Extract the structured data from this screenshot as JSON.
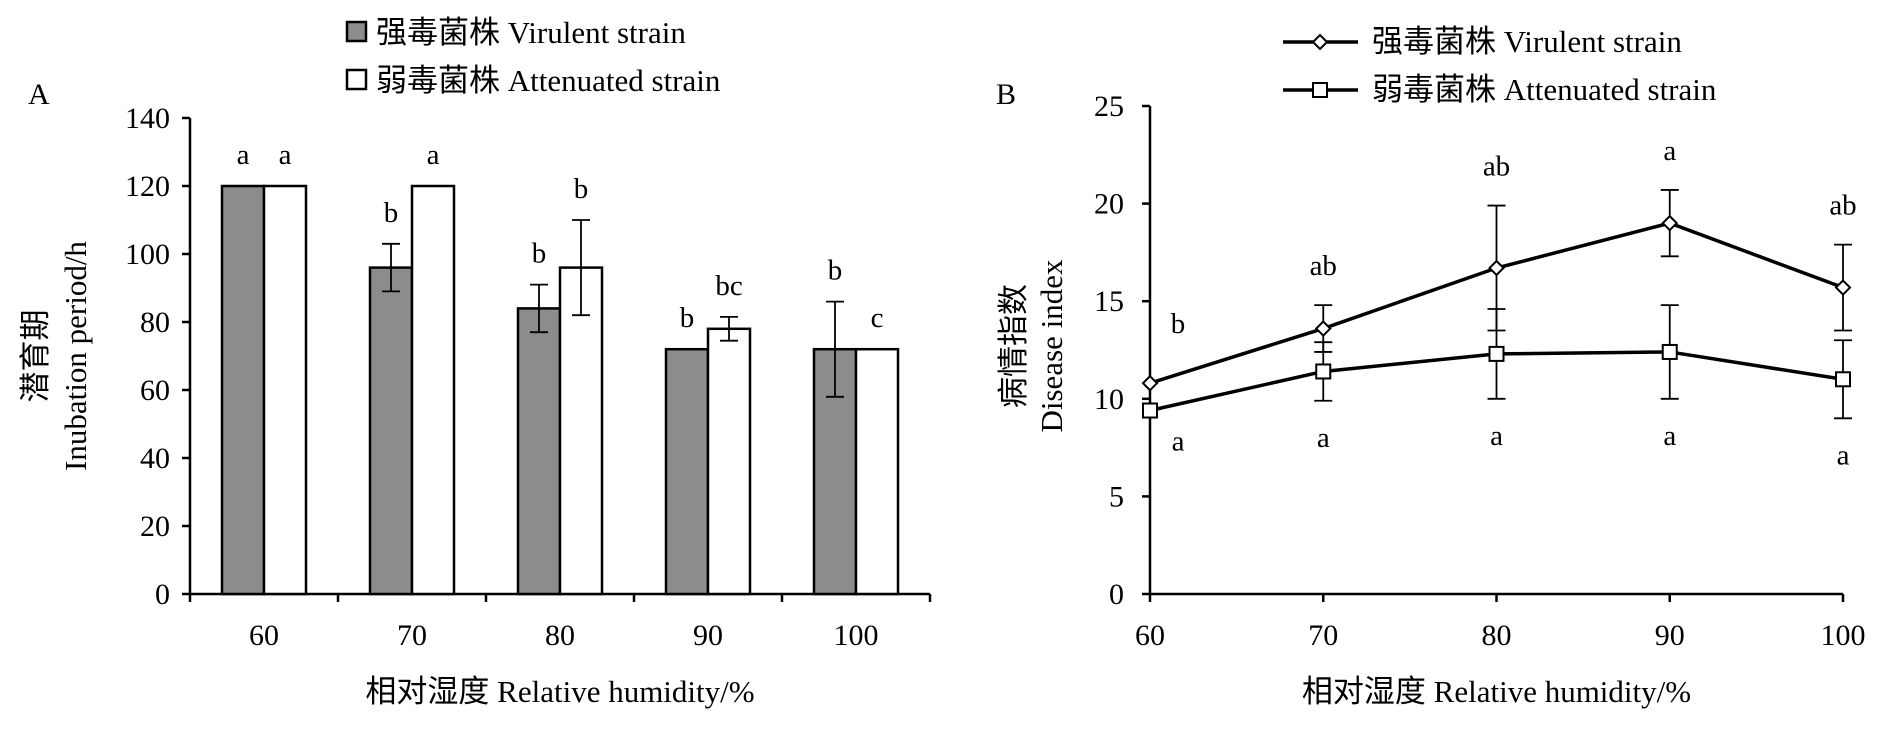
{
  "chart_data": [
    {
      "panel": "A",
      "type": "bar",
      "categories": [
        "60",
        "70",
        "80",
        "90",
        "100"
      ],
      "xlabel": "相对湿度 Relative humidity/%",
      "ylabel_cn": "潜育期",
      "ylabel_en": "Inubation period/h",
      "ylim": [
        0,
        140
      ],
      "yticks": [
        "0",
        "20",
        "40",
        "60",
        "80",
        "100",
        "120",
        "140"
      ],
      "grid": false,
      "legend_position": "top",
      "series": [
        {
          "name": "强毒菌株 Virulent strain",
          "color": "#8c8c8c",
          "values": [
            120,
            96,
            84,
            72,
            72
          ],
          "errors": [
            0,
            7,
            7,
            0,
            14
          ],
          "letters": [
            "a",
            "b",
            "b",
            "b",
            "b"
          ]
        },
        {
          "name": "弱毒菌株 Attenuated strain",
          "color": "#ffffff",
          "values": [
            120,
            120,
            96,
            78,
            72
          ],
          "errors": [
            0,
            0,
            14,
            3.5,
            0
          ],
          "letters": [
            "a",
            "a",
            "b",
            "bc",
            "c"
          ]
        }
      ]
    },
    {
      "panel": "B",
      "type": "line",
      "x": [
        60,
        70,
        80,
        90,
        100
      ],
      "xticks": [
        "60",
        "70",
        "80",
        "90",
        "100"
      ],
      "xlabel": "相对湿度 Relative humidity/%",
      "ylabel_cn": "病情指数",
      "ylabel_en": "Disease index",
      "xlim": [
        60,
        100
      ],
      "ylim": [
        0,
        25
      ],
      "yticks": [
        "0",
        "5",
        "10",
        "15",
        "20",
        "25"
      ],
      "grid": false,
      "legend_position": "top",
      "series": [
        {
          "name": "强毒菌株 Virulent strain",
          "marker": "diamond",
          "values": [
            10.8,
            13.6,
            16.7,
            19.0,
            15.7
          ],
          "errors": [
            0,
            1.2,
            3.2,
            1.7,
            2.2
          ],
          "letters": [
            "b",
            "ab",
            "ab",
            "a",
            "ab"
          ]
        },
        {
          "name": "弱毒菌株 Attenuated strain",
          "marker": "square",
          "values": [
            9.4,
            11.4,
            12.3,
            12.4,
            11.0
          ],
          "errors": [
            0,
            1.5,
            2.3,
            2.4,
            2.0
          ],
          "letters": [
            "a",
            "a",
            "a",
            "a",
            "a"
          ]
        }
      ]
    }
  ]
}
